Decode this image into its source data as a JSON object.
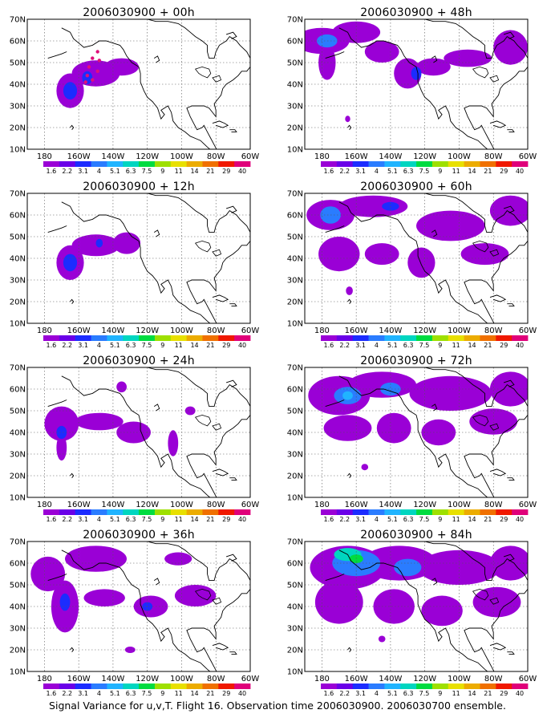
{
  "caption": "Signal Variance for u,v,T. Flight 16. Observation time 2006030900. 2006030700 ensemble.",
  "lat_labels": [
    "70N",
    "60N",
    "50N",
    "40N",
    "30N",
    "20N",
    "10N"
  ],
  "lon_labels": [
    "180",
    "160W",
    "140W",
    "120W",
    "100W",
    "80W",
    "60W"
  ],
  "colorbar": {
    "labels": [
      "1.6",
      "2.2",
      "3.1",
      "4",
      "5.1",
      "6.3",
      "7.5",
      "9",
      "11",
      "14",
      "21",
      "29",
      "40"
    ],
    "colors": [
      "#9a00d6",
      "#6a00e8",
      "#1c2cff",
      "#2a7cff",
      "#20b4ff",
      "#00d6c0",
      "#00dc40",
      "#9ee000",
      "#e8e000",
      "#ecac00",
      "#f07000",
      "#f01800",
      "#e0007a"
    ]
  },
  "panels": [
    {
      "id": "00h",
      "title": "2006030900 + 00h",
      "blobs": [
        {
          "lon": 195,
          "lat": 37,
          "rx": 8,
          "ry": 8,
          "level": 0
        },
        {
          "lon": 210,
          "lat": 45,
          "rx": 14,
          "ry": 6,
          "level": 0
        },
        {
          "lon": 225,
          "lat": 48,
          "rx": 10,
          "ry": 4,
          "level": 0
        },
        {
          "lon": 195,
          "lat": 37,
          "rx": 4,
          "ry": 4,
          "level": 2
        },
        {
          "lon": 205,
          "lat": 43,
          "rx": 3,
          "ry": 3,
          "level": 2
        }
      ],
      "obs": [
        {
          "lon": 205,
          "lat": 44
        },
        {
          "lon": 206,
          "lat": 48
        },
        {
          "lon": 208,
          "lat": 52
        },
        {
          "lon": 211,
          "lat": 55
        },
        {
          "lon": 212,
          "lat": 51
        },
        {
          "lon": 211,
          "lat": 46
        },
        {
          "lon": 208,
          "lat": 42
        },
        {
          "lon": 204,
          "lat": 41
        }
      ]
    },
    {
      "id": "48h",
      "title": "2006030900 + 48h",
      "blobs": [
        {
          "lon": 180,
          "lat": 60,
          "rx": 16,
          "ry": 6,
          "level": 0
        },
        {
          "lon": 200,
          "lat": 64,
          "rx": 14,
          "ry": 5,
          "level": 0
        },
        {
          "lon": 215,
          "lat": 55,
          "rx": 10,
          "ry": 5,
          "level": 0
        },
        {
          "lon": 230,
          "lat": 45,
          "rx": 8,
          "ry": 7,
          "level": 0
        },
        {
          "lon": 245,
          "lat": 48,
          "rx": 10,
          "ry": 4,
          "level": 0
        },
        {
          "lon": 265,
          "lat": 52,
          "rx": 14,
          "ry": 4,
          "level": 0
        },
        {
          "lon": 290,
          "lat": 57,
          "rx": 10,
          "ry": 8,
          "level": 0
        },
        {
          "lon": 183,
          "lat": 50,
          "rx": 5,
          "ry": 8,
          "level": 0
        },
        {
          "lon": 183,
          "lat": 60,
          "rx": 6,
          "ry": 3,
          "level": 3
        },
        {
          "lon": 235,
          "lat": 45,
          "rx": 3,
          "ry": 3,
          "level": 2
        },
        {
          "lon": 195,
          "lat": 24,
          "rx": 1.5,
          "ry": 1.5,
          "level": 0
        }
      ],
      "obs": []
    },
    {
      "id": "12h",
      "title": "2006030900 + 12h",
      "blobs": [
        {
          "lon": 195,
          "lat": 38,
          "rx": 8,
          "ry": 8,
          "level": 0
        },
        {
          "lon": 210,
          "lat": 46,
          "rx": 14,
          "ry": 5,
          "level": 0
        },
        {
          "lon": 228,
          "lat": 47,
          "rx": 8,
          "ry": 5,
          "level": 0
        },
        {
          "lon": 195,
          "lat": 38,
          "rx": 4,
          "ry": 4,
          "level": 2
        },
        {
          "lon": 212,
          "lat": 47,
          "rx": 2,
          "ry": 2,
          "level": 2
        }
      ],
      "obs": []
    },
    {
      "id": "60h",
      "title": "2006030900 + 60h",
      "blobs": [
        {
          "lon": 185,
          "lat": 60,
          "rx": 14,
          "ry": 7,
          "level": 0
        },
        {
          "lon": 210,
          "lat": 64,
          "rx": 20,
          "ry": 5,
          "level": 0
        },
        {
          "lon": 255,
          "lat": 55,
          "rx": 20,
          "ry": 7,
          "level": 0
        },
        {
          "lon": 290,
          "lat": 62,
          "rx": 12,
          "ry": 7,
          "level": 0
        },
        {
          "lon": 190,
          "lat": 42,
          "rx": 12,
          "ry": 8,
          "level": 0
        },
        {
          "lon": 215,
          "lat": 42,
          "rx": 10,
          "ry": 5,
          "level": 0
        },
        {
          "lon": 238,
          "lat": 38,
          "rx": 8,
          "ry": 7,
          "level": 0
        },
        {
          "lon": 275,
          "lat": 42,
          "rx": 14,
          "ry": 5,
          "level": 0
        },
        {
          "lon": 185,
          "lat": 60,
          "rx": 6,
          "ry": 4,
          "level": 3
        },
        {
          "lon": 220,
          "lat": 64,
          "rx": 5,
          "ry": 2,
          "level": 2
        },
        {
          "lon": 196,
          "lat": 25,
          "rx": 2,
          "ry": 2,
          "level": 0
        }
      ],
      "obs": []
    },
    {
      "id": "24h",
      "title": "2006030900 + 24h",
      "blobs": [
        {
          "lon": 190,
          "lat": 44,
          "rx": 10,
          "ry": 8,
          "level": 0
        },
        {
          "lon": 212,
          "lat": 45,
          "rx": 14,
          "ry": 4,
          "level": 0
        },
        {
          "lon": 232,
          "lat": 40,
          "rx": 10,
          "ry": 5,
          "level": 0
        },
        {
          "lon": 190,
          "lat": 33,
          "rx": 3,
          "ry": 6,
          "level": 0
        },
        {
          "lon": 225,
          "lat": 61,
          "rx": 3,
          "ry": 2.5,
          "level": 0
        },
        {
          "lon": 265,
          "lat": 50,
          "rx": 3,
          "ry": 2,
          "level": 0
        },
        {
          "lon": 255,
          "lat": 35,
          "rx": 3,
          "ry": 6,
          "level": 0
        },
        {
          "lon": 190,
          "lat": 40,
          "rx": 3,
          "ry": 3,
          "level": 2
        }
      ],
      "obs": []
    },
    {
      "id": "72h",
      "title": "2006030900 + 72h",
      "blobs": [
        {
          "lon": 190,
          "lat": 57,
          "rx": 18,
          "ry": 9,
          "level": 0
        },
        {
          "lon": 215,
          "lat": 62,
          "rx": 20,
          "ry": 6,
          "level": 0
        },
        {
          "lon": 255,
          "lat": 58,
          "rx": 24,
          "ry": 8,
          "level": 0
        },
        {
          "lon": 290,
          "lat": 60,
          "rx": 12,
          "ry": 8,
          "level": 0
        },
        {
          "lon": 195,
          "lat": 42,
          "rx": 14,
          "ry": 6,
          "level": 0
        },
        {
          "lon": 222,
          "lat": 42,
          "rx": 10,
          "ry": 7,
          "level": 0
        },
        {
          "lon": 248,
          "lat": 40,
          "rx": 10,
          "ry": 6,
          "level": 0
        },
        {
          "lon": 280,
          "lat": 45,
          "rx": 14,
          "ry": 6,
          "level": 0
        },
        {
          "lon": 195,
          "lat": 57,
          "rx": 8,
          "ry": 4,
          "level": 3
        },
        {
          "lon": 220,
          "lat": 60,
          "rx": 6,
          "ry": 3,
          "level": 3
        },
        {
          "lon": 195,
          "lat": 57,
          "rx": 3,
          "ry": 2,
          "level": 4
        },
        {
          "lon": 205,
          "lat": 24,
          "rx": 2,
          "ry": 1.5,
          "level": 0
        }
      ],
      "obs": []
    },
    {
      "id": "36h",
      "title": "2006030900 + 36h",
      "blobs": [
        {
          "lon": 182,
          "lat": 55,
          "rx": 10,
          "ry": 8,
          "level": 0
        },
        {
          "lon": 210,
          "lat": 62,
          "rx": 18,
          "ry": 6,
          "level": 0
        },
        {
          "lon": 192,
          "lat": 40,
          "rx": 8,
          "ry": 12,
          "level": 0
        },
        {
          "lon": 215,
          "lat": 44,
          "rx": 12,
          "ry": 4,
          "level": 0
        },
        {
          "lon": 242,
          "lat": 40,
          "rx": 10,
          "ry": 5,
          "level": 0
        },
        {
          "lon": 268,
          "lat": 45,
          "rx": 12,
          "ry": 5,
          "level": 0
        },
        {
          "lon": 258,
          "lat": 62,
          "rx": 8,
          "ry": 3,
          "level": 0
        },
        {
          "lon": 188,
          "lat": 35,
          "rx": 2,
          "ry": 5,
          "level": 0
        },
        {
          "lon": 230,
          "lat": 20,
          "rx": 3,
          "ry": 1.5,
          "level": 0
        },
        {
          "lon": 192,
          "lat": 42,
          "rx": 3,
          "ry": 4,
          "level": 2
        },
        {
          "lon": 240,
          "lat": 40,
          "rx": 3,
          "ry": 2,
          "level": 2
        }
      ],
      "obs": []
    },
    {
      "id": "84h",
      "title": "2006030900 + 84h",
      "blobs": [
        {
          "lon": 195,
          "lat": 58,
          "rx": 22,
          "ry": 10,
          "level": 0
        },
        {
          "lon": 225,
          "lat": 60,
          "rx": 22,
          "ry": 8,
          "level": 0
        },
        {
          "lon": 260,
          "lat": 58,
          "rx": 24,
          "ry": 8,
          "level": 0
        },
        {
          "lon": 290,
          "lat": 60,
          "rx": 12,
          "ry": 8,
          "level": 0
        },
        {
          "lon": 190,
          "lat": 42,
          "rx": 14,
          "ry": 10,
          "level": 0
        },
        {
          "lon": 222,
          "lat": 40,
          "rx": 12,
          "ry": 8,
          "level": 0
        },
        {
          "lon": 250,
          "lat": 38,
          "rx": 12,
          "ry": 7,
          "level": 0
        },
        {
          "lon": 282,
          "lat": 42,
          "rx": 14,
          "ry": 7,
          "level": 0
        },
        {
          "lon": 200,
          "lat": 60,
          "rx": 14,
          "ry": 6,
          "level": 3
        },
        {
          "lon": 230,
          "lat": 58,
          "rx": 8,
          "ry": 4,
          "level": 3
        },
        {
          "lon": 195,
          "lat": 64,
          "rx": 8,
          "ry": 3,
          "level": 5
        },
        {
          "lon": 200,
          "lat": 62,
          "rx": 4,
          "ry": 2,
          "level": 6
        },
        {
          "lon": 215,
          "lat": 25,
          "rx": 2,
          "ry": 1.5,
          "level": 0
        }
      ],
      "obs": []
    }
  ]
}
